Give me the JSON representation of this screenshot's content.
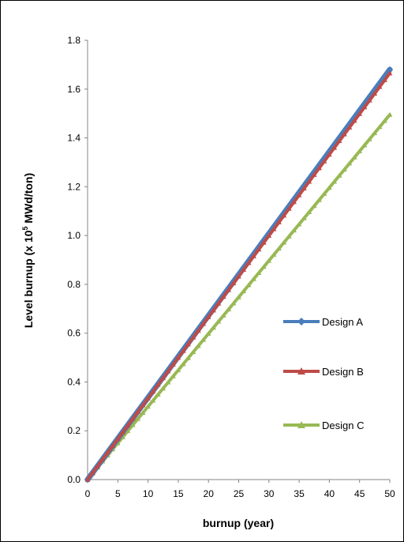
{
  "chart_data": {
    "type": "line",
    "xlabel": "burnup (year)",
    "ylabel": {
      "prefix": "Level burnup (x 10",
      "superscript": "5",
      "suffix": "  MWd/ton)"
    },
    "xlim": [
      0,
      50
    ],
    "ylim": [
      0,
      1.8
    ],
    "x_ticks": [
      0,
      5,
      10,
      15,
      20,
      25,
      30,
      35,
      40,
      45,
      50
    ],
    "y_ticks": [
      "0.0",
      "0.2",
      "0.4",
      "0.6",
      "0.8",
      "1.0",
      "1.2",
      "1.4",
      "1.6",
      "1.8"
    ],
    "grid": false,
    "legend_position": "right",
    "x": [
      0,
      50
    ],
    "series": [
      {
        "name": "Design A",
        "values": [
          0,
          1.68
        ],
        "color": "#4a7ebb",
        "marker": "diamond"
      },
      {
        "name": "Design B",
        "values": [
          0,
          1.665
        ],
        "color": "#be4b48",
        "marker": "triangle"
      },
      {
        "name": "Design C",
        "values": [
          0,
          1.495
        ],
        "color": "#98b954",
        "marker": "triangle"
      }
    ]
  }
}
